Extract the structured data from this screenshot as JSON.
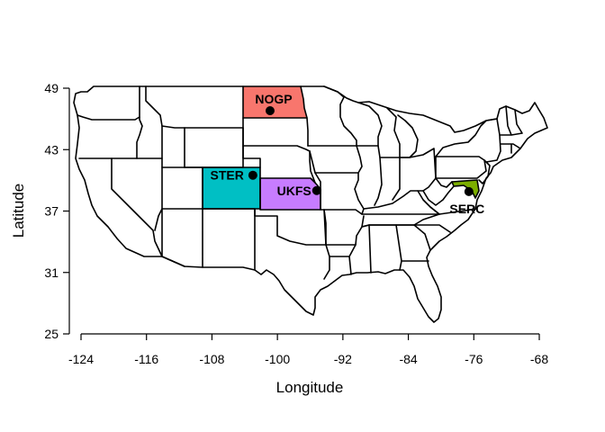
{
  "map": {
    "x_axis": {
      "label": "Longitude",
      "ticks": [
        -124,
        -116,
        -108,
        -100,
        -92,
        -84,
        -76,
        -68
      ],
      "range": [
        -124,
        -68
      ]
    },
    "y_axis": {
      "label": "Latitude",
      "ticks": [
        25,
        31,
        37,
        43,
        49
      ],
      "range": [
        25,
        49
      ]
    },
    "colors": {
      "NOGP": "#F8766D",
      "STER": "#00BFC4",
      "UKFS": "#C77CFF",
      "SERC": "#7CAE00",
      "point": "#000000"
    },
    "highlighted_states": [
      {
        "site": "NOGP",
        "state": "North Dakota"
      },
      {
        "site": "STER",
        "state": "Colorado"
      },
      {
        "site": "UKFS",
        "state": "Kansas"
      },
      {
        "site": "SERC",
        "state": "Maryland"
      }
    ],
    "sites": [
      {
        "name": "NOGP",
        "lon": -100.9,
        "lat": 46.8
      },
      {
        "name": "STER",
        "lon": -103.0,
        "lat": 40.5
      },
      {
        "name": "UKFS",
        "lon": -95.2,
        "lat": 39.0
      },
      {
        "name": "SERC",
        "lon": -76.6,
        "lat": 38.9
      }
    ]
  }
}
